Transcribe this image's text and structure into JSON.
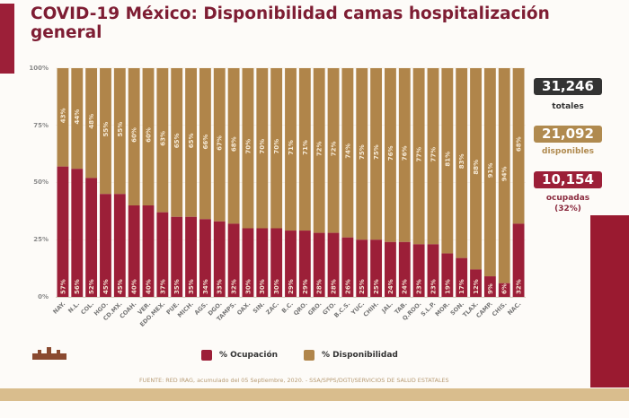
{
  "header": {
    "title": "COVID-19 México: Disponibilidad camas hospitalización general"
  },
  "stats": {
    "totales": {
      "value": "31,246",
      "label": "totales",
      "color": "#333333"
    },
    "disponibles": {
      "value": "21,092",
      "label": "disponibles",
      "color": "#b08a4f"
    },
    "ocupadas": {
      "value": "10,154",
      "label": "ocupadas",
      "sublabel": "(32%)",
      "color": "#9c1f38"
    }
  },
  "legend": {
    "ocupacion": {
      "label": "% Ocupación",
      "color": "#9c1f38"
    },
    "disponibilidad": {
      "label": "% Disponibilidad",
      "color": "#b0854a"
    }
  },
  "footer": {
    "source": "FUENTE: RED IRAG, acumulado del 05 Septiembre, 2020. -  SSA/SPPS/DGTI/SERVICIOS DE SALUD ESTATALES"
  },
  "chart_data": {
    "type": "bar",
    "stacked": true,
    "title": "COVID-19 México: Disponibilidad camas hospitalización general",
    "xlabel": "",
    "ylabel": "",
    "ylim": [
      0,
      100
    ],
    "yticks": [
      "0%",
      "25%",
      "50%",
      "75%",
      "100%"
    ],
    "legend_position": "bottom",
    "categories": [
      "NAY.",
      "N.L.",
      "COL.",
      "HGO.",
      "CD.MX.",
      "COAH.",
      "VER.",
      "EDO.MEX.",
      "PUE.",
      "MICH.",
      "AGS.",
      "DGO.",
      "TAMPS.",
      "OAX.",
      "SIN.",
      "ZAC.",
      "B.C.",
      "QRO.",
      "GRO.",
      "GTO.",
      "B.C.S.",
      "YUC.",
      "CHIH.",
      "JAL.",
      "TAB.",
      "Q.ROO.",
      "S.L.P.",
      "MOR.",
      "SON.",
      "TLAX.",
      "CAMP.",
      "CHIS.",
      "NAC."
    ],
    "series": [
      {
        "name": "% Ocupación",
        "color": "#9c1f38",
        "values": [
          57,
          56,
          52,
          45,
          45,
          40,
          40,
          37,
          35,
          35,
          34,
          33,
          32,
          30,
          30,
          30,
          29,
          29,
          28,
          28,
          26,
          25,
          25,
          24,
          24,
          23,
          23,
          19,
          17,
          12,
          9,
          6,
          32
        ]
      },
      {
        "name": "% Disponibilidad",
        "color": "#b0854a",
        "values": [
          43,
          44,
          48,
          55,
          55,
          60,
          60,
          63,
          65,
          65,
          66,
          67,
          68,
          70,
          70,
          70,
          71,
          71,
          72,
          72,
          74,
          75,
          75,
          76,
          76,
          77,
          77,
          81,
          83,
          88,
          91,
          94,
          68
        ]
      }
    ]
  }
}
